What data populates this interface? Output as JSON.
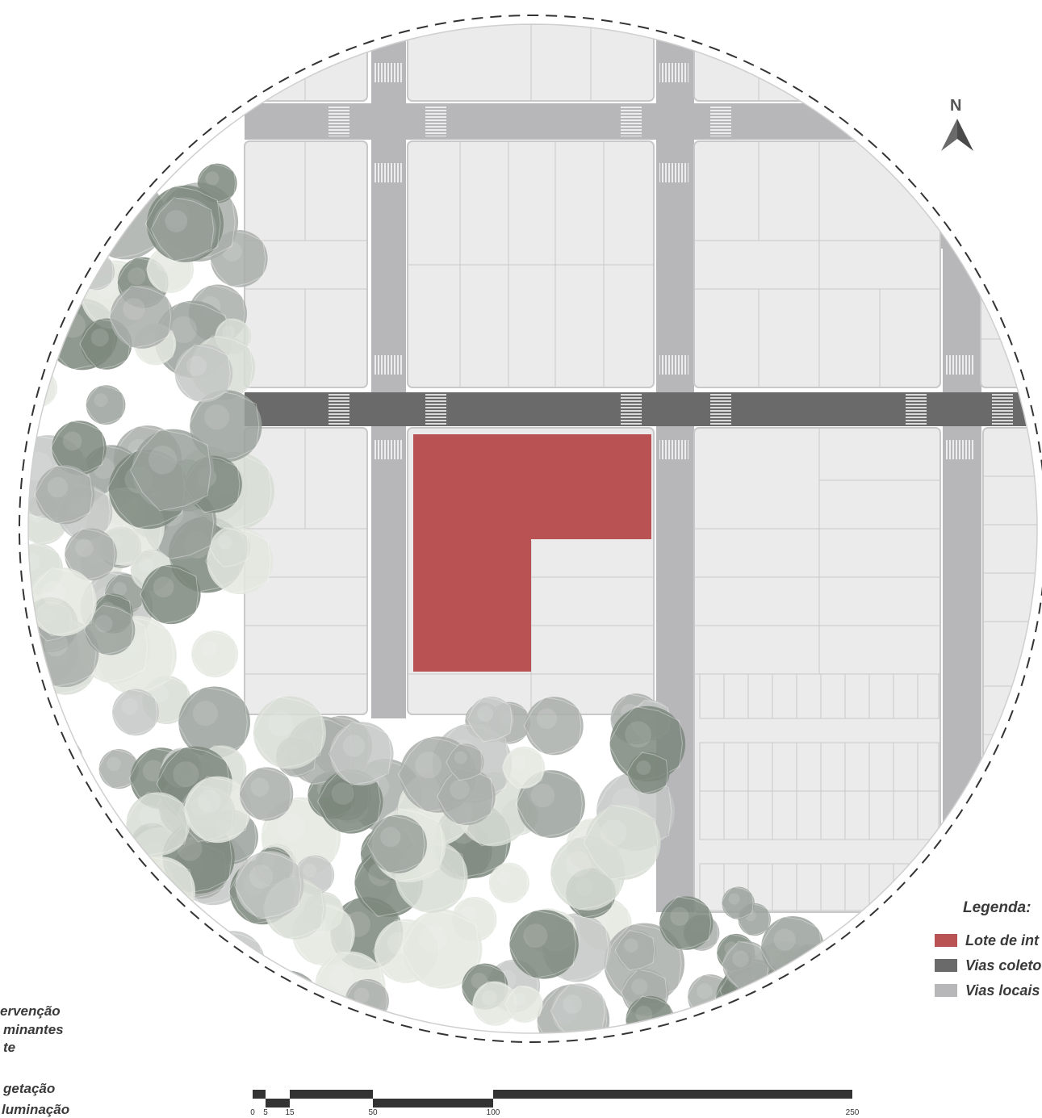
{
  "colors": {
    "lote": "#b95252",
    "vias_coletoras": "#6a6a6a",
    "vias_locais": "#b7b7ba",
    "block": "#ebebeb",
    "block_stroke": "#c8c8c8",
    "tree_dark": "#7d877d",
    "tree_mid": "#a9aeaa",
    "tree_light": "#d7ddd5"
  },
  "north": {
    "letter": "N",
    "icon": "north-arrow-icon"
  },
  "legend": {
    "title": "Legenda:",
    "items": [
      {
        "label": "Lote de int",
        "color": "#b95252"
      },
      {
        "label": "Vias coleto",
        "color": "#6a6a6a"
      },
      {
        "label": "Vias locais",
        "color": "#b7b7ba"
      }
    ]
  },
  "left_labels": [
    "ervenção",
    "minantes",
    "te",
    "getação",
    "luminação"
  ],
  "scale_bar": {
    "ticks": [
      "0",
      "5",
      "15",
      "50",
      "100",
      "250"
    ]
  }
}
